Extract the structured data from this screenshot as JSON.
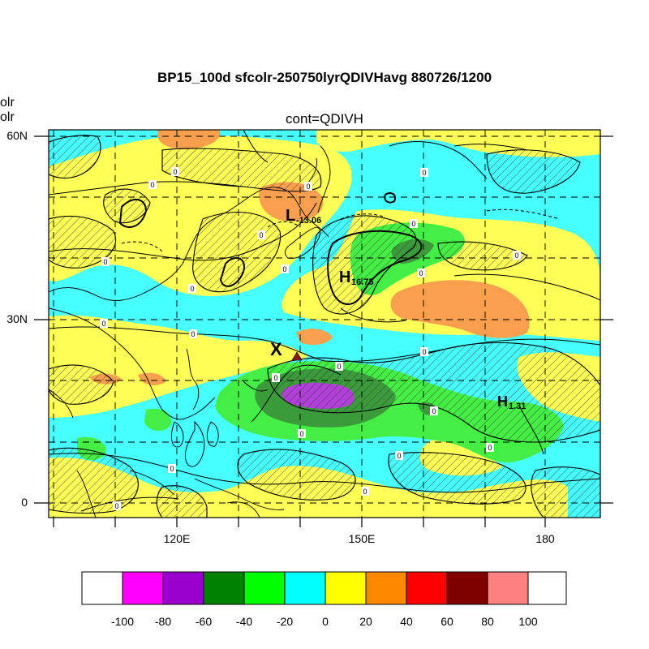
{
  "title": "BP15_100d sfcolr-250750lyrQDIVHavg  880726/1200",
  "subtitle": "cont=QDIVH",
  "left_labels": [
    "olr",
    "olr"
  ],
  "lat_labels": [
    "60N",
    "30N",
    "0"
  ],
  "lon_labels": [
    "120E",
    "150E",
    "180"
  ],
  "colorbar": {
    "labels": [
      "-100",
      "-80",
      "-60",
      "-40",
      "-20",
      "0",
      "20",
      "40",
      "60",
      "80",
      "100"
    ],
    "colors": [
      "#ffffff",
      "#ff00ff",
      "#9900cc",
      "#008000",
      "#00ff00",
      "#00ffff",
      "#ffff00",
      "#ff8800",
      "#ff0000",
      "#800000",
      "#ff8080",
      "#ffffff"
    ]
  },
  "field_colors": {
    "cyan": "#47ffff",
    "yellow": "#ffff57",
    "orange": "#f99f4d",
    "light_green": "#44ee44",
    "dark_green": "#3b9b3b",
    "purple": "#b040d8"
  },
  "annotations": {
    "low": {
      "letter": "L",
      "value": "-13.06"
    },
    "high1": {
      "letter": "H",
      "value": "16.75"
    },
    "high2": {
      "letter": "H",
      "value": "1.31"
    },
    "x_mark": "X",
    "contour_zero": "0"
  },
  "marker_color": "#8b1a1a"
}
